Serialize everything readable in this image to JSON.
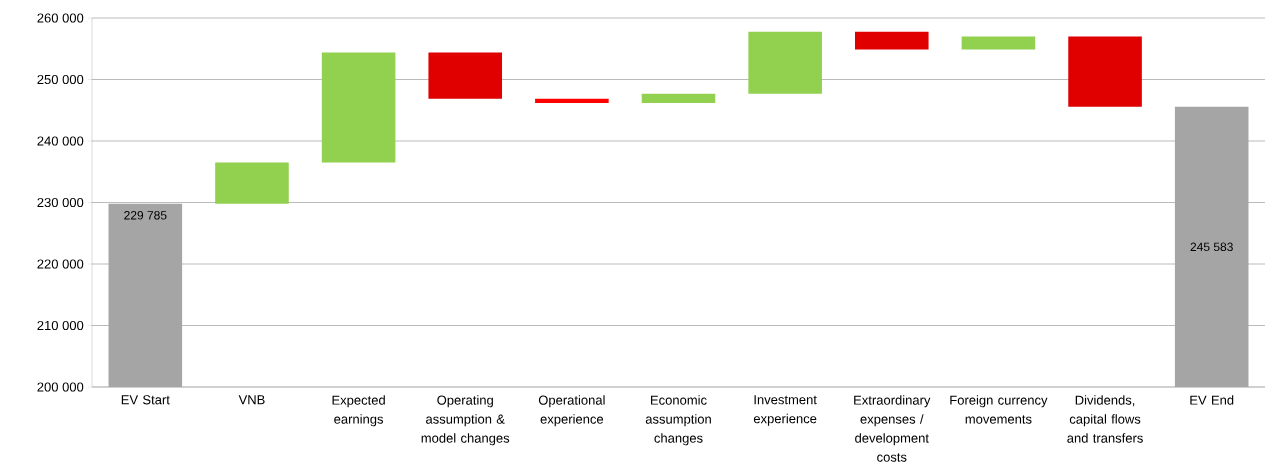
{
  "chart_data": {
    "type": "bar",
    "categories": [
      "EV Start",
      "VNB",
      "Expected earnings",
      "Operating assumption & model changes",
      "Operational experience",
      "Economic assumption changes",
      "Investment experience",
      "Extraordinary expenses / development costs",
      "Foreign currency movements",
      "Dividends, capital flows and transfers",
      "EV End"
    ],
    "values": [
      229785,
      6700,
      17900,
      -7500,
      -700,
      1500,
      10100,
      -2900,
      2100,
      -11400,
      245583
    ],
    "base": [
      null,
      229785,
      236485,
      254385,
      246885,
      246185,
      247685,
      257785,
      254885,
      256985,
      null
    ],
    "colors": [
      "#a5a5a5",
      "#92d050",
      "#92d050",
      "#e00000",
      "#ff0000",
      "#92d050",
      "#92d050",
      "#e00000",
      "#92d050",
      "#e00000",
      "#a5a5a5"
    ],
    "value_labels": [
      "229 785",
      null,
      null,
      null,
      null,
      null,
      null,
      null,
      null,
      null,
      "245 583"
    ],
    "ylim": [
      200000,
      260000
    ],
    "yticks": [
      {
        "value": 200000,
        "label": "200 000"
      },
      {
        "value": 210000,
        "label": "210 000"
      },
      {
        "value": 220000,
        "label": "220 000"
      },
      {
        "value": 230000,
        "label": "230 000"
      },
      {
        "value": 240000,
        "label": "240 000"
      },
      {
        "value": 250000,
        "label": "250 000"
      },
      {
        "value": 260000,
        "label": "260 000"
      }
    ],
    "grid": "y"
  }
}
